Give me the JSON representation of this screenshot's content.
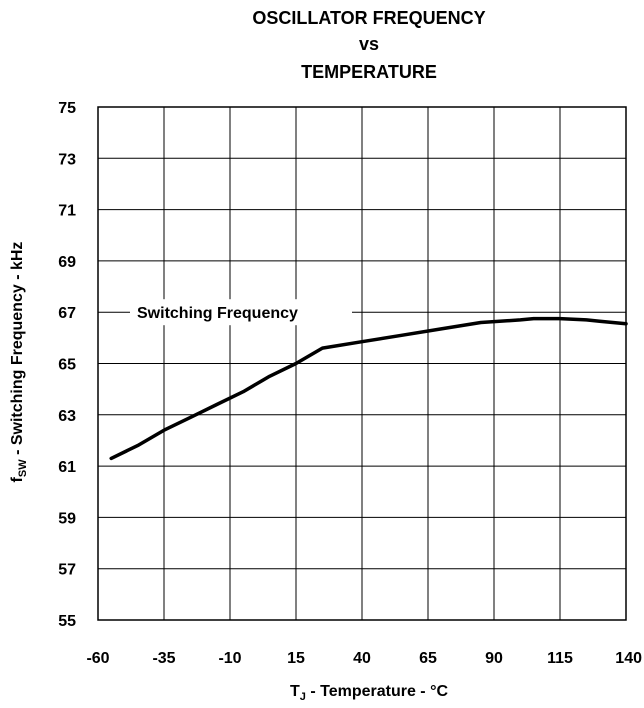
{
  "chart_data": {
    "type": "line",
    "title_lines": [
      "OSCILLATOR FREQUENCY",
      "vs",
      "TEMPERATURE"
    ],
    "xlabel": {
      "prefix": "T",
      "sub": "J",
      "suffix": " - Temperature - °C"
    },
    "ylabel": {
      "prefix": "f",
      "sub": "SW",
      "suffix": " - Switching Frequency - kHz"
    },
    "xlim": [
      -60,
      140
    ],
    "ylim": [
      55,
      75
    ],
    "x_ticks": [
      -60,
      -35,
      -10,
      15,
      40,
      65,
      90,
      115,
      140
    ],
    "y_ticks": [
      75,
      73,
      71,
      69,
      67,
      65,
      63,
      61,
      59,
      57,
      55
    ],
    "grid": true,
    "series": [
      {
        "name": "Switching Frequency",
        "color": "#000000",
        "x": [
          -55,
          -45,
          -35,
          -25,
          -15,
          -5,
          5,
          15,
          25,
          40,
          55,
          70,
          85,
          100,
          105,
          115,
          125,
          130,
          140
        ],
        "y": [
          61.3,
          61.8,
          62.4,
          62.9,
          63.4,
          63.9,
          64.5,
          65.0,
          65.6,
          65.85,
          66.1,
          66.35,
          66.6,
          66.7,
          66.75,
          66.75,
          66.7,
          66.65,
          66.55
        ]
      }
    ],
    "annotation": {
      "text": "Switching Frequency",
      "y": 67
    }
  }
}
